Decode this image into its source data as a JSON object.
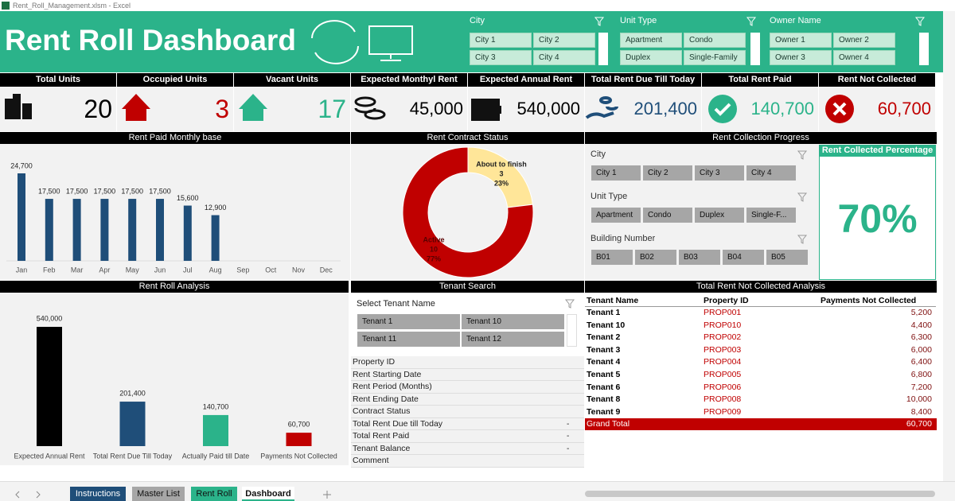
{
  "window": {
    "title": "Rent_Roll_Management.xlsm - Excel"
  },
  "header": {
    "title": "Rent Roll Dashboard"
  },
  "slicers": [
    {
      "title": "City",
      "items": [
        "City 1",
        "City 2",
        "City 3",
        "City 4"
      ]
    },
    {
      "title": "Unit Type",
      "items": [
        "Apartment",
        "Condo",
        "Duplex",
        "Single-Family"
      ]
    },
    {
      "title": "Owner Name",
      "items": [
        "Owner 1",
        "Owner 2",
        "Owner 3",
        "Owner 4"
      ]
    }
  ],
  "kpis": [
    {
      "label": "Total Units",
      "value": "20",
      "color": "#000000"
    },
    {
      "label": "Occupied Units",
      "value": "3",
      "color": "#c00000"
    },
    {
      "label": "Vacant Units",
      "value": "17",
      "color": "#2bb38a"
    },
    {
      "label": "Expected Monthyl Rent",
      "value": "45,000",
      "color": "#000000"
    },
    {
      "label": "Expected Annual Rent",
      "value": "540,000",
      "color": "#000000"
    },
    {
      "label": "Total Rent Due Till Today",
      "value": "201,400",
      "color": "#1f4e79"
    },
    {
      "label": "Total Rent Paid",
      "value": "140,700",
      "color": "#2bb38a"
    },
    {
      "label": "Rent Not Collected",
      "value": "60,700",
      "color": "#c00000"
    }
  ],
  "monthly_chart": {
    "type": "bar",
    "title": "Rent Paid Monthly base",
    "categories": [
      "Jan",
      "Feb",
      "Mar",
      "Apr",
      "May",
      "Jun",
      "Jul",
      "Aug",
      "Sep",
      "Oct",
      "Nov",
      "Dec"
    ],
    "values": [
      24700,
      17500,
      17500,
      17500,
      17500,
      17500,
      15600,
      12900,
      null,
      null,
      null,
      null
    ],
    "value_labels": [
      "24,700",
      "17,500",
      "17,500",
      "17,500",
      "17,500",
      "17,500",
      "15,600",
      "12,900",
      null,
      null,
      null,
      null
    ],
    "color": "#1f4e79"
  },
  "contract_chart": {
    "type": "pie",
    "title": "Rent Contract Status",
    "categories": [
      "About to finish",
      "Active"
    ],
    "values": [
      3,
      10
    ],
    "percent_labels": [
      "23%",
      "77%"
    ],
    "colors": [
      "#ffe699",
      "#c00000"
    ]
  },
  "collection": {
    "title": "Rent Collection Progress",
    "slicers": [
      {
        "title": "City",
        "items": [
          "City 1",
          "City 2",
          "City 3",
          "City 4"
        ]
      },
      {
        "title": "Unit Type",
        "items": [
          "Apartment",
          "Condo",
          "Duplex",
          "Single-F..."
        ]
      },
      {
        "title": "Building Number",
        "items": [
          "B01",
          "B02",
          "B03",
          "B04",
          "B05"
        ]
      }
    ],
    "percent_title": "Rent Collected Percentage",
    "percent": "70%"
  },
  "analysis_chart": {
    "type": "bar",
    "title": "Rent Roll Analysis",
    "categories": [
      "Expected Annual Rent",
      "Total Rent Due Till Today",
      "Actually Paid till Date",
      "Payments Not Collected"
    ],
    "values": [
      540000,
      201400,
      140700,
      60700
    ],
    "value_labels": [
      "540,000",
      "201,400",
      "140,700",
      "60,700"
    ],
    "colors": [
      "#000000",
      "#1f4e79",
      "#2bb38a",
      "#c00000"
    ]
  },
  "tenant_search": {
    "title": "Tenant Search",
    "slicer_title": "Select Tenant Name",
    "items": [
      "Tenant 1",
      "Tenant 10",
      "Tenant 11",
      "Tenant 12"
    ],
    "fields": [
      {
        "label": "Property ID"
      },
      {
        "label": "Rent Starting Date"
      },
      {
        "label": "Rent Period (Months)"
      },
      {
        "label": "Rent Ending Date"
      },
      {
        "label": "Contract Status"
      },
      {
        "label": "Total Rent Due till Today",
        "value": "-"
      },
      {
        "label": "Total Rent Paid",
        "value": "-"
      },
      {
        "label": "Tenant Balance",
        "value": "-"
      },
      {
        "label": "Comment"
      }
    ]
  },
  "not_collected": {
    "title": "Total Rent Not Collected Analysis",
    "columns": [
      "Tenant Name",
      "Property ID",
      "Payments Not Collected"
    ],
    "rows": [
      [
        "Tenant 1",
        "PROP001",
        "5,200"
      ],
      [
        "Tenant 10",
        "PROP010",
        "4,400"
      ],
      [
        "Tenant 2",
        "PROP002",
        "6,300"
      ],
      [
        "Tenant 3",
        "PROP003",
        "6,000"
      ],
      [
        "Tenant 4",
        "PROP004",
        "6,400"
      ],
      [
        "Tenant 5",
        "PROP005",
        "6,800"
      ],
      [
        "Tenant 6",
        "PROP006",
        "7,200"
      ],
      [
        "Tenant 8",
        "PROP008",
        "10,000"
      ],
      [
        "Tenant 9",
        "PROP009",
        "8,400"
      ]
    ],
    "total": [
      "Grand Total",
      "60,700"
    ]
  },
  "sheet_tabs": [
    "Instructions",
    "Master List",
    "Rent Roll",
    "Dashboard"
  ]
}
